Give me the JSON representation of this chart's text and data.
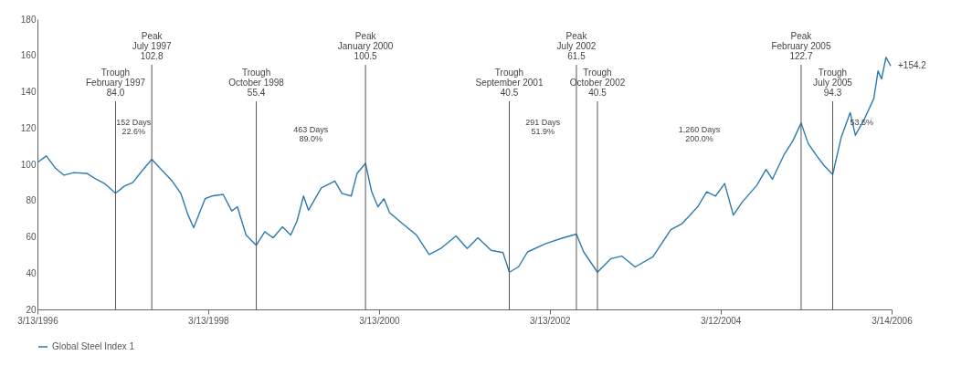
{
  "chart_data": {
    "type": "line",
    "x": [
      "1996-03-13",
      "1996-04-20",
      "1996-05-30",
      "1996-07-05",
      "1996-08-15",
      "1996-10-10",
      "1996-11-20",
      "1996-12-25",
      "1997-02-10",
      "1997-03-20",
      "1997-04-25",
      "1997-06-01",
      "1997-07-15",
      "1997-08-20",
      "1997-10-10",
      "1997-11-16",
      "1997-12-16",
      "1998-01-10",
      "1998-02-28",
      "1998-03-28",
      "1998-05-16",
      "1998-06-22",
      "1998-07-16",
      "1998-08-22",
      "1998-10-05",
      "1998-11-10",
      "1998-12-16",
      "1999-01-25",
      "1999-03-01",
      "1999-03-28",
      "1999-04-25",
      "1999-05-16",
      "1999-07-10",
      "1999-09-06",
      "1999-10-06",
      "1999-11-15",
      "1999-12-10",
      "2000-01-15",
      "2000-02-10",
      "2000-03-08",
      "2000-04-03",
      "2000-04-27",
      "2000-06-20",
      "2000-08-20",
      "2000-10-13",
      "2000-12-02",
      "2001-02-05",
      "2001-03-25",
      "2001-05-10",
      "2001-07-05",
      "2001-08-25",
      "2001-09-21",
      "2001-10-30",
      "2001-12-08",
      "2002-02-24",
      "2002-05-10",
      "2002-07-05",
      "2002-08-05",
      "2002-10-03",
      "2002-11-30",
      "2003-01-15",
      "2003-03-13",
      "2003-05-28",
      "2003-08-13",
      "2003-10-01",
      "2003-12-06",
      "2004-01-13",
      "2004-02-20",
      "2004-03-30",
      "2004-05-06",
      "2004-06-14",
      "2004-08-15",
      "2004-09-23",
      "2004-10-20",
      "2004-12-10",
      "2005-01-16",
      "2005-02-20",
      "2005-03-22",
      "2005-04-28",
      "2005-05-28",
      "2005-07-05",
      "2005-08-10",
      "2005-09-18",
      "2005-10-10",
      "2005-11-18",
      "2005-12-28",
      "2006-01-15",
      "2006-01-30",
      "2006-02-18",
      "2006-03-10"
    ],
    "series": [
      {
        "name": "Global Steel Index 1",
        "color": "#2b7bb0",
        "values": [
          101,
          104.6,
          97.7,
          94,
          95.4,
          95,
          91.7,
          89.4,
          84.0,
          88,
          90,
          96,
          102.8,
          97.7,
          90.8,
          84,
          72.4,
          65,
          81,
          82.5,
          83.4,
          74.3,
          76.6,
          61,
          55.4,
          62.8,
          59.5,
          65.5,
          61,
          68.7,
          82.5,
          74.7,
          87,
          90.8,
          84,
          82.5,
          95,
          100.5,
          85,
          76.6,
          81,
          73.3,
          67.4,
          61,
          50.3,
          53.6,
          60.5,
          53.6,
          59.5,
          52.6,
          51.3,
          40.5,
          43.4,
          51.7,
          56.3,
          59.5,
          61.5,
          51.7,
          40.5,
          48,
          49.4,
          43.4,
          49,
          64,
          67.4,
          76.6,
          84.8,
          82.5,
          89.4,
          72,
          79.3,
          88.5,
          97.2,
          91.7,
          105.5,
          113,
          122.7,
          111.5,
          104.6,
          99.5,
          94.3,
          114.7,
          128.5,
          116,
          125,
          136.3,
          151.5,
          147,
          159,
          154.2
        ]
      }
    ],
    "xlim": [
      "1996-03-13",
      "2006-03-14"
    ],
    "xticks": [
      {
        "value": "1996-03-13",
        "label": "3/13/1996"
      },
      {
        "value": "1998-03-13",
        "label": "3/13/1998"
      },
      {
        "value": "2000-03-13",
        "label": "3/13/2000"
      },
      {
        "value": "2002-03-13",
        "label": "3/13/2002"
      },
      {
        "value": "2004-03-12",
        "label": "3/12/2004"
      },
      {
        "value": "2006-03-14",
        "label": "3/14/2006"
      }
    ],
    "ylim": [
      20,
      180
    ],
    "yticks": [
      20,
      40,
      60,
      80,
      100,
      120,
      140,
      160,
      180
    ],
    "ref_lines": [
      {
        "axis": "x",
        "value": "1997-02-10",
        "label": "Trough\nFebruary 1997\n84.0"
      },
      {
        "axis": "x",
        "value": "1997-07-15",
        "label": "Peak\nJuly 1997\n102.8"
      },
      {
        "axis": "x",
        "value": "1998-10-05",
        "label": "Trough\nOctober 1998\n55.4"
      },
      {
        "axis": "x",
        "value": "2000-01-15",
        "label": "Peak\nJanuary 2000\n100.5"
      },
      {
        "axis": "x",
        "value": "2001-09-21",
        "label": "Trough\nSeptember 2001\n40.5"
      },
      {
        "axis": "x",
        "value": "2002-07-05",
        "label": "Peak\nJuly 2002\n61.5"
      },
      {
        "axis": "x",
        "value": "2002-10-03",
        "label": "Trough\nOctober 2002\n40.5"
      },
      {
        "axis": "x",
        "value": "2005-02-20",
        "label": "Peak\nFebruary 2005\n122.7"
      },
      {
        "axis": "x",
        "value": "2005-07-05",
        "label": "Trough\nJuly 2005\n94.3"
      }
    ],
    "annotations": [
      "152 Days\n22.6%",
      "463 Days\n89.0%",
      "291 Days\n51.9%",
      "1,260 Days\n200.0%",
      "53.5%",
      {
        "text": "+154.2",
        "x": "2006-03-10",
        "y": 154.2
      }
    ],
    "legend": "bottom",
    "grid": false,
    "marker": "none"
  }
}
